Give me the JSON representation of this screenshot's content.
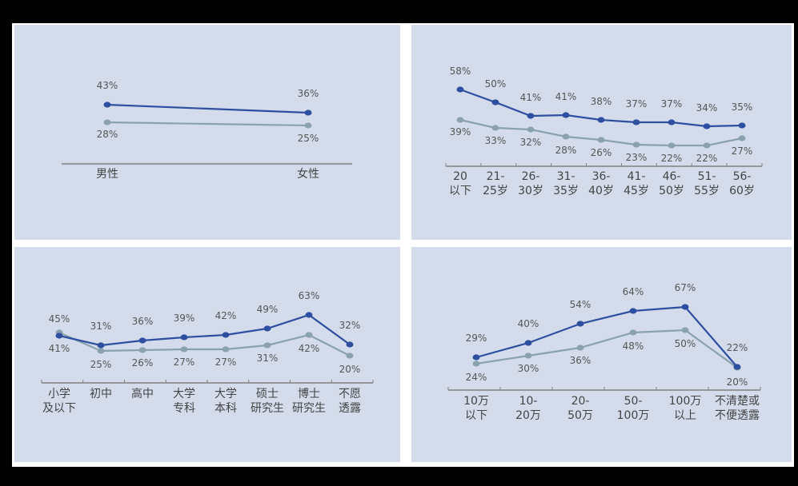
{
  "colors": {
    "series_a": "#2e4f9f",
    "series_b": "#8aa2ae",
    "panel_bg": "#d4dcec",
    "axis": "#808080",
    "text": "#555555"
  },
  "chart_data": [
    {
      "type": "line",
      "title": "",
      "categories": [
        "男性",
        "女性"
      ],
      "series": [
        {
          "name": "series_a",
          "values": [
            43,
            36
          ]
        },
        {
          "name": "series_b",
          "values": [
            28,
            25
          ]
        }
      ],
      "labels": {
        "series_a": [
          "43%",
          "36%"
        ],
        "series_b": [
          "28%",
          "25%"
        ]
      },
      "xlabel": "",
      "ylabel": "",
      "grid": false
    },
    {
      "type": "line",
      "title": "",
      "categories": [
        "20以下",
        "21-25岁",
        "26-30岁",
        "31-35岁",
        "36-40岁",
        "41-45岁",
        "46-50岁",
        "51-55岁",
        "56-60岁"
      ],
      "category_lines": [
        [
          "20",
          "以下"
        ],
        [
          "21-",
          "25岁"
        ],
        [
          "26-",
          "30岁"
        ],
        [
          "31-",
          "35岁"
        ],
        [
          "36-",
          "40岁"
        ],
        [
          "41-",
          "45岁"
        ],
        [
          "46-",
          "50岁"
        ],
        [
          "51-",
          "55岁"
        ],
        [
          "56-",
          "60岁"
        ]
      ],
      "series": [
        {
          "name": "series_a",
          "values": [
            58,
            50,
            41,
            41,
            38,
            37,
            37,
            34,
            35
          ]
        },
        {
          "name": "series_b",
          "values": [
            39,
            33,
            32,
            28,
            26,
            23,
            22,
            22,
            27
          ]
        }
      ],
      "labels": {
        "series_a": [
          "58%",
          "50%",
          "41%",
          "41%",
          "38%",
          "37%",
          "37%",
          "34%",
          "35%"
        ],
        "series_b": [
          "39%",
          "33%",
          "32%",
          "28%",
          "26%",
          "23%",
          "22%",
          "22%",
          "27%"
        ]
      },
      "xlabel": "",
      "ylabel": "",
      "grid": false
    },
    {
      "type": "line",
      "title": "",
      "categories": [
        "小学及以下",
        "初中",
        "高中",
        "大学专科",
        "大学本科",
        "硕士研究生",
        "博士研究生",
        "不愿透露"
      ],
      "category_lines": [
        [
          "小学",
          "及以下"
        ],
        [
          "初中",
          ""
        ],
        [
          "高中",
          ""
        ],
        [
          "大学",
          "专科"
        ],
        [
          "大学",
          "本科"
        ],
        [
          "硕士",
          "研究生"
        ],
        [
          "博士",
          "研究生"
        ],
        [
          "不愿",
          "透露"
        ]
      ],
      "series": [
        {
          "name": "series_a",
          "values": [
            41,
            31,
            36,
            39,
            42,
            49,
            63,
            32
          ]
        },
        {
          "name": "series_b",
          "values": [
            45,
            25,
            26,
            27,
            27,
            31,
            42,
            20
          ]
        }
      ],
      "labels": {
        "series_a": [
          "41%",
          "31%",
          "36%",
          "39%",
          "42%",
          "49%",
          "63%",
          "32%"
        ],
        "series_b": [
          "45%",
          "25%",
          "26%",
          "27%",
          "27%",
          "31%",
          "42%",
          "20%"
        ]
      },
      "xlabel": "",
      "ylabel": "",
      "grid": false
    },
    {
      "type": "line",
      "title": "",
      "categories": [
        "10万以下",
        "10-20万",
        "20-50万",
        "50-100万",
        "100万以上",
        "不清楚或不便透露"
      ],
      "category_lines": [
        [
          "10万",
          "以下"
        ],
        [
          "10-",
          "20万"
        ],
        [
          "20-",
          "50万"
        ],
        [
          "50-",
          "100万"
        ],
        [
          "100万",
          "以上"
        ],
        [
          "不清楚或",
          "不便透露"
        ]
      ],
      "series": [
        {
          "name": "series_a",
          "values": [
            29,
            40,
            54,
            64,
            67,
            22
          ]
        },
        {
          "name": "series_b",
          "values": [
            24,
            30,
            36,
            48,
            50,
            20
          ]
        }
      ],
      "labels": {
        "series_a": [
          "29%",
          "40%",
          "54%",
          "64%",
          "67%",
          "22%"
        ],
        "series_b": [
          "24%",
          "30%",
          "36%",
          "48%",
          "50%",
          "20%"
        ]
      },
      "xlabel": "",
      "ylabel": "",
      "grid": false
    }
  ]
}
